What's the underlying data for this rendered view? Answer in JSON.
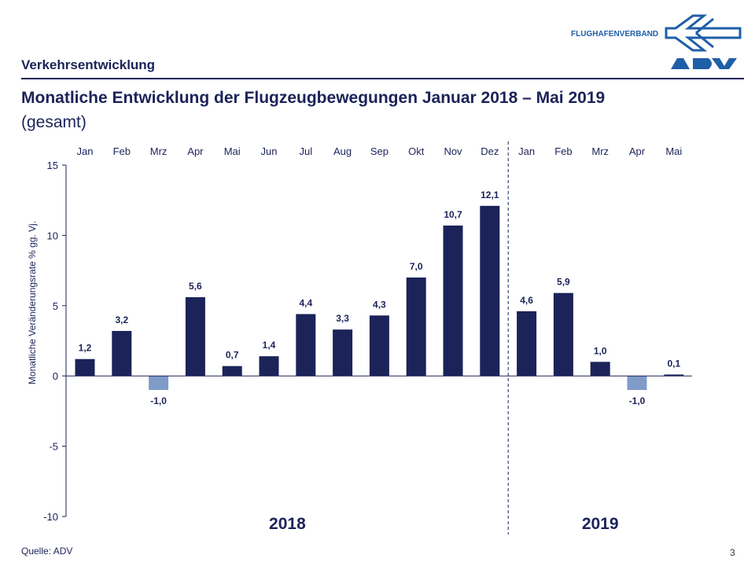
{
  "header": {
    "section": "Verkehrsentwicklung",
    "logo_text": "FLUGHAFENVERBAND",
    "logo_mark": "ADV"
  },
  "title": "Monatliche Entwicklung der Flugzeugbewegungen Januar 2018 – Mai 2019",
  "subtitle": "(gesamt)",
  "footer": {
    "source": "Quelle: ADV",
    "page": "3"
  },
  "colors": {
    "positive": "#1b2359",
    "negative": "#7f9cc8",
    "logo": "#1f5fa8"
  },
  "chart_data": {
    "type": "bar",
    "ylabel": "Monatliche Veränderungsrate % gg. Vj.",
    "ylim": [
      -10,
      15
    ],
    "yticks": [
      15,
      10,
      5,
      0,
      -5,
      -10
    ],
    "categories": [
      "Jan",
      "Feb",
      "Mrz",
      "Apr",
      "Mai",
      "Jun",
      "Jul",
      "Aug",
      "Sep",
      "Okt",
      "Nov",
      "Dez",
      "Jan",
      "Feb",
      "Mrz",
      "Apr",
      "Mai"
    ],
    "values": [
      1.2,
      3.2,
      -1.0,
      5.6,
      0.7,
      1.4,
      4.4,
      3.3,
      4.3,
      7.0,
      10.7,
      12.1,
      4.6,
      5.9,
      1.0,
      -1.0,
      0.1
    ],
    "data_labels": [
      "1,2",
      "3,2",
      "-1,0",
      "5,6",
      "0,7",
      "1,4",
      "4,4",
      "3,3",
      "4,3",
      "7,0",
      "10,7",
      "12,1",
      "4,6",
      "5,9",
      "1,0",
      "-1,0",
      "0,1"
    ],
    "groups": [
      {
        "label": "2018",
        "count": 12
      },
      {
        "label": "2019",
        "count": 5
      }
    ],
    "grid": false
  }
}
